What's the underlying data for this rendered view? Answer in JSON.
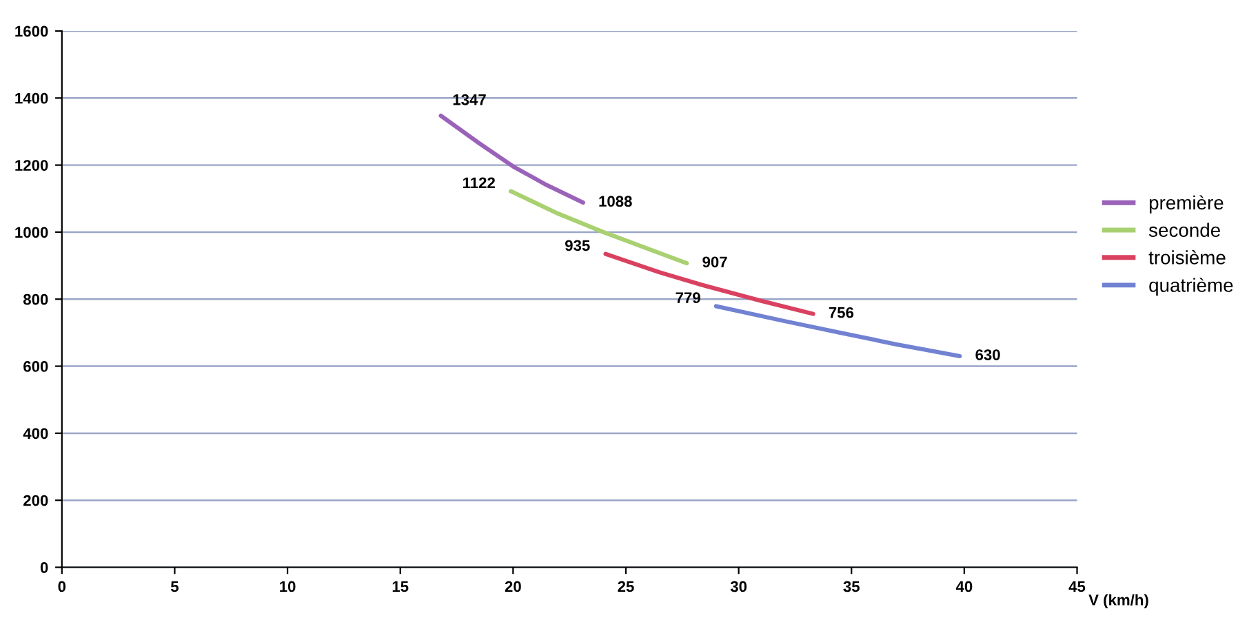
{
  "chart_data": {
    "type": "line",
    "xlabel": "V (km/h)",
    "xlim": [
      0,
      45
    ],
    "xticks": [
      0,
      5,
      10,
      15,
      20,
      25,
      30,
      35,
      40,
      45
    ],
    "ylim": [
      0,
      1600
    ],
    "yticks": [
      0,
      200,
      400,
      600,
      800,
      1000,
      1200,
      1400,
      1600
    ],
    "grid": "y",
    "legend": "right",
    "marker": "none",
    "line_style": "solid",
    "series": [
      {
        "name": "première",
        "color": "#9a62b8",
        "x": [
          16.8,
          18.5,
          20,
          21.5,
          23.1
        ],
        "values": [
          1347,
          1265,
          1196,
          1140,
          1088
        ],
        "value_labels": [
          "1347",
          null,
          null,
          null,
          "1088"
        ]
      },
      {
        "name": "seconde",
        "color": "#a9d071",
        "x": [
          19.9,
          22,
          24,
          26,
          27.7
        ],
        "values": [
          1122,
          1055,
          1000,
          950,
          907
        ],
        "value_labels": [
          "1122",
          null,
          null,
          null,
          "907"
        ]
      },
      {
        "name": "troisième",
        "color": "#d94160",
        "x": [
          24.1,
          26.5,
          28.5,
          31,
          33.3
        ],
        "values": [
          935,
          880,
          840,
          795,
          756
        ],
        "value_labels": [
          "935",
          null,
          null,
          null,
          "756"
        ]
      },
      {
        "name": "quatrième",
        "color": "#7282d2",
        "x": [
          29.0,
          32,
          34.5,
          37,
          39.8
        ],
        "values": [
          779,
          735,
          700,
          665,
          630
        ],
        "value_labels": [
          "779",
          null,
          null,
          null,
          "630"
        ]
      }
    ]
  }
}
